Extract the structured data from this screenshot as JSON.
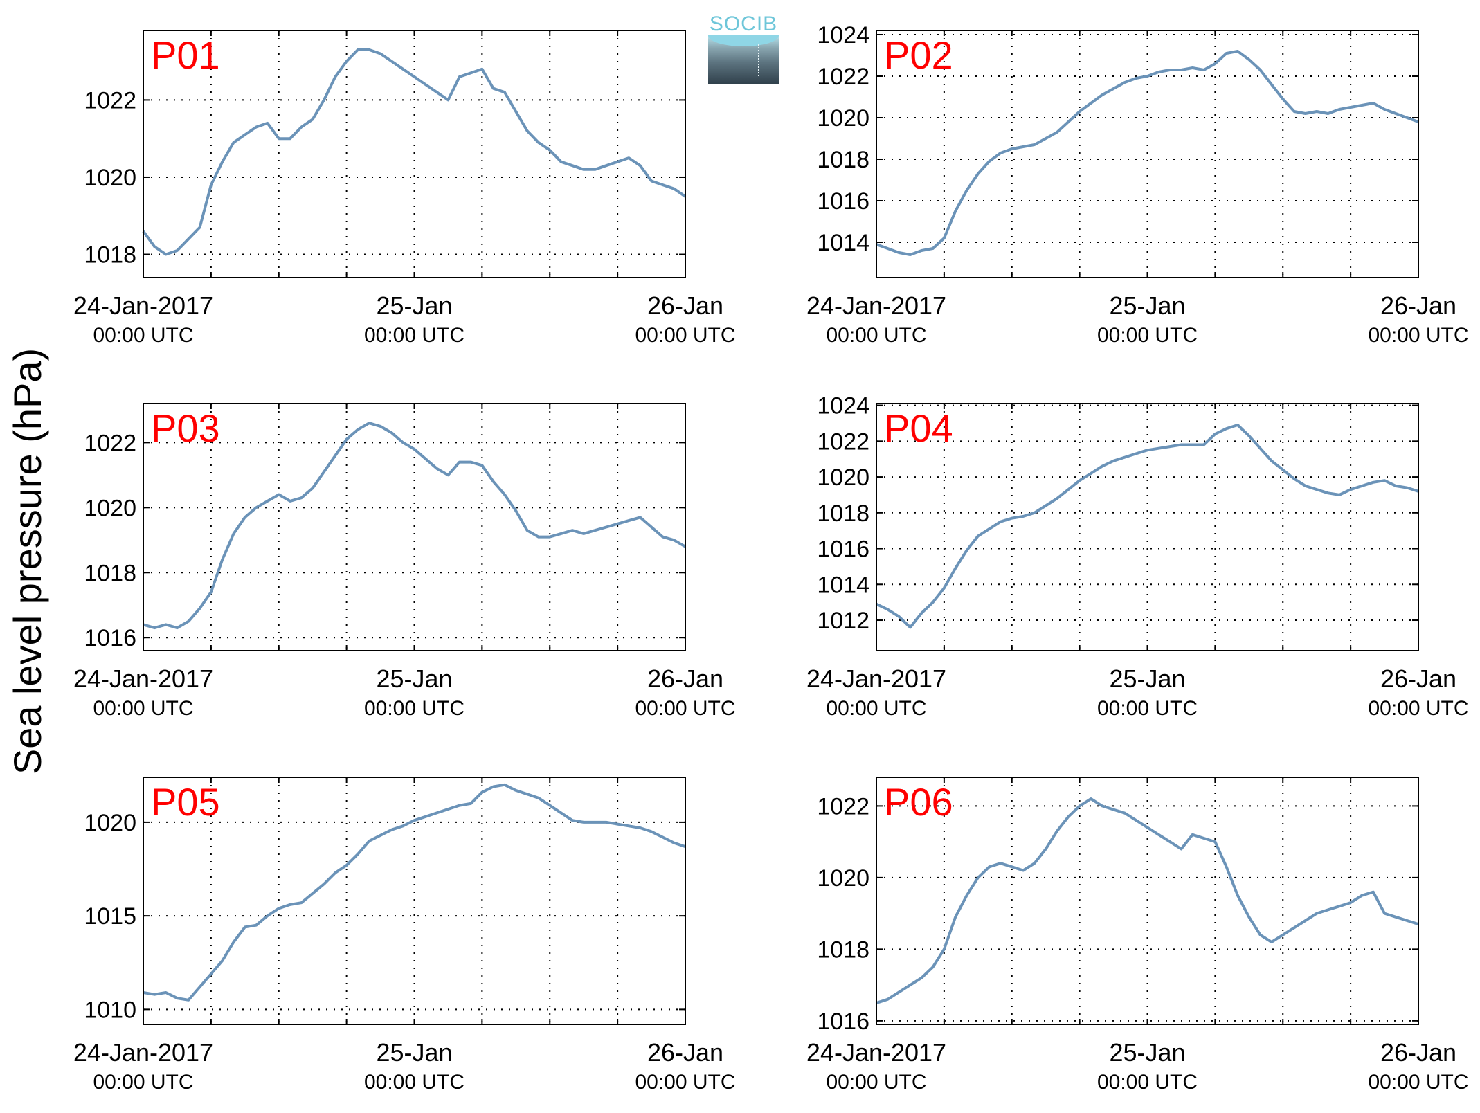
{
  "figure": {
    "ylabel": "Sea level pressure (hPa)",
    "logo_text": "SOCIB"
  },
  "chart_data": [
    {
      "type": "line",
      "title": "P01",
      "xlim": [
        "24-Jan-2017 00:00",
        "26-Jan-2017 00:00"
      ],
      "ylim": [
        1017.4,
        1023.8
      ],
      "yticks": [
        1018,
        1020,
        1022
      ],
      "xtick_labels": [
        [
          "24-Jan-2017",
          "00:00 UTC"
        ],
        [
          "25-Jan",
          "00:00 UTC"
        ],
        [
          "26-Jan",
          "00:00 UTC"
        ]
      ],
      "grid": true,
      "line_color": "#6b93b8",
      "series": [
        {
          "x": [
            0,
            1,
            2,
            3,
            4,
            5,
            6,
            7,
            8,
            9,
            10,
            11,
            12,
            13,
            14,
            15,
            16,
            17,
            18,
            19,
            20,
            21,
            22,
            23,
            24,
            25,
            26,
            27,
            28,
            29,
            30,
            31,
            32,
            33,
            34,
            35,
            36,
            37,
            38,
            39,
            40,
            41,
            42,
            43,
            44,
            45,
            46,
            47,
            48
          ],
          "y": [
            1018.6,
            1018.2,
            1018.0,
            1018.1,
            1018.4,
            1018.7,
            1019.8,
            1020.4,
            1020.9,
            1021.1,
            1021.3,
            1021.4,
            1021.0,
            1021.0,
            1021.3,
            1021.5,
            1022.0,
            1022.6,
            1023.0,
            1023.3,
            1023.3,
            1023.2,
            1023.0,
            1022.8,
            1022.6,
            1022.4,
            1022.2,
            1022.0,
            1022.6,
            1022.7,
            1022.8,
            1022.3,
            1022.2,
            1021.7,
            1021.2,
            1020.9,
            1020.7,
            1020.4,
            1020.3,
            1020.2,
            1020.2,
            1020.3,
            1020.4,
            1020.5,
            1020.3,
            1019.9,
            1019.8,
            1019.7,
            1019.5
          ]
        }
      ]
    },
    {
      "type": "line",
      "title": "P02",
      "xlim": [
        "24-Jan-2017 00:00",
        "26-Jan-2017 00:00"
      ],
      "ylim": [
        1012.3,
        1024.2
      ],
      "yticks": [
        1014,
        1016,
        1018,
        1020,
        1022,
        1024
      ],
      "xtick_labels": [
        [
          "24-Jan-2017",
          "00:00 UTC"
        ],
        [
          "25-Jan",
          "00:00 UTC"
        ],
        [
          "26-Jan",
          "00:00 UTC"
        ]
      ],
      "grid": true,
      "line_color": "#6b93b8",
      "series": [
        {
          "x": [
            0,
            1,
            2,
            3,
            4,
            5,
            6,
            7,
            8,
            9,
            10,
            11,
            12,
            13,
            14,
            15,
            16,
            17,
            18,
            19,
            20,
            21,
            22,
            23,
            24,
            25,
            26,
            27,
            28,
            29,
            30,
            31,
            32,
            33,
            34,
            35,
            36,
            37,
            38,
            39,
            40,
            41,
            42,
            43,
            44,
            45,
            46,
            47,
            48
          ],
          "y": [
            1013.9,
            1013.7,
            1013.5,
            1013.4,
            1013.6,
            1013.7,
            1014.2,
            1015.5,
            1016.5,
            1017.3,
            1017.9,
            1018.3,
            1018.5,
            1018.6,
            1018.7,
            1019.0,
            1019.3,
            1019.8,
            1020.3,
            1020.7,
            1021.1,
            1021.4,
            1021.7,
            1021.9,
            1022.0,
            1022.2,
            1022.3,
            1022.3,
            1022.4,
            1022.3,
            1022.6,
            1023.1,
            1023.2,
            1022.8,
            1022.3,
            1021.6,
            1020.9,
            1020.3,
            1020.2,
            1020.3,
            1020.2,
            1020.4,
            1020.5,
            1020.6,
            1020.7,
            1020.4,
            1020.2,
            1020.0,
            1019.8
          ]
        }
      ]
    },
    {
      "type": "line",
      "title": "P03",
      "xlim": [
        "24-Jan-2017 00:00",
        "26-Jan-2017 00:00"
      ],
      "ylim": [
        1015.6,
        1023.2
      ],
      "yticks": [
        1016,
        1018,
        1020,
        1022
      ],
      "xtick_labels": [
        [
          "24-Jan-2017",
          "00:00 UTC"
        ],
        [
          "25-Jan",
          "00:00 UTC"
        ],
        [
          "26-Jan",
          "00:00 UTC"
        ]
      ],
      "grid": true,
      "line_color": "#6b93b8",
      "series": [
        {
          "x": [
            0,
            1,
            2,
            3,
            4,
            5,
            6,
            7,
            8,
            9,
            10,
            11,
            12,
            13,
            14,
            15,
            16,
            17,
            18,
            19,
            20,
            21,
            22,
            23,
            24,
            25,
            26,
            27,
            28,
            29,
            30,
            31,
            32,
            33,
            34,
            35,
            36,
            37,
            38,
            39,
            40,
            41,
            42,
            43,
            44,
            45,
            46,
            47,
            48
          ],
          "y": [
            1016.4,
            1016.3,
            1016.4,
            1016.3,
            1016.5,
            1016.9,
            1017.4,
            1018.4,
            1019.2,
            1019.7,
            1020.0,
            1020.2,
            1020.4,
            1020.2,
            1020.3,
            1020.6,
            1021.1,
            1021.6,
            1022.1,
            1022.4,
            1022.6,
            1022.5,
            1022.3,
            1022.0,
            1021.8,
            1021.5,
            1021.2,
            1021.0,
            1021.4,
            1021.4,
            1021.3,
            1020.8,
            1020.4,
            1019.9,
            1019.3,
            1019.1,
            1019.1,
            1019.2,
            1019.3,
            1019.2,
            1019.3,
            1019.4,
            1019.5,
            1019.6,
            1019.7,
            1019.4,
            1019.1,
            1019.0,
            1018.8
          ]
        }
      ]
    },
    {
      "type": "line",
      "title": "P04",
      "xlim": [
        "24-Jan-2017 00:00",
        "26-Jan-2017 00:00"
      ],
      "ylim": [
        1010.3,
        1024.1
      ],
      "yticks": [
        1012,
        1014,
        1016,
        1018,
        1020,
        1022,
        1024
      ],
      "xtick_labels": [
        [
          "24-Jan-2017",
          "00:00 UTC"
        ],
        [
          "25-Jan",
          "00:00 UTC"
        ],
        [
          "26-Jan",
          "00:00 UTC"
        ]
      ],
      "grid": true,
      "line_color": "#6b93b8",
      "series": [
        {
          "x": [
            0,
            1,
            2,
            3,
            4,
            5,
            6,
            7,
            8,
            9,
            10,
            11,
            12,
            13,
            14,
            15,
            16,
            17,
            18,
            19,
            20,
            21,
            22,
            23,
            24,
            25,
            26,
            27,
            28,
            29,
            30,
            31,
            32,
            33,
            34,
            35,
            36,
            37,
            38,
            39,
            40,
            41,
            42,
            43,
            44,
            45,
            46,
            47,
            48
          ],
          "y": [
            1012.9,
            1012.6,
            1012.2,
            1011.6,
            1012.4,
            1013.0,
            1013.8,
            1014.9,
            1015.9,
            1016.7,
            1017.1,
            1017.5,
            1017.7,
            1017.8,
            1018.0,
            1018.4,
            1018.8,
            1019.3,
            1019.8,
            1020.2,
            1020.6,
            1020.9,
            1021.1,
            1021.3,
            1021.5,
            1021.6,
            1021.7,
            1021.8,
            1021.8,
            1021.8,
            1022.4,
            1022.7,
            1022.9,
            1022.3,
            1021.6,
            1020.9,
            1020.4,
            1019.9,
            1019.5,
            1019.3,
            1019.1,
            1019.0,
            1019.3,
            1019.5,
            1019.7,
            1019.8,
            1019.5,
            1019.4,
            1019.2
          ]
        }
      ]
    },
    {
      "type": "line",
      "title": "P05",
      "xlim": [
        "24-Jan-2017 00:00",
        "26-Jan-2017 00:00"
      ],
      "ylim": [
        1009.2,
        1022.4
      ],
      "yticks": [
        1010,
        1015,
        1020
      ],
      "xtick_labels": [
        [
          "24-Jan-2017",
          "00:00 UTC"
        ],
        [
          "25-Jan",
          "00:00 UTC"
        ],
        [
          "26-Jan",
          "00:00 UTC"
        ]
      ],
      "grid": true,
      "line_color": "#6b93b8",
      "series": [
        {
          "x": [
            0,
            1,
            2,
            3,
            4,
            5,
            6,
            7,
            8,
            9,
            10,
            11,
            12,
            13,
            14,
            15,
            16,
            17,
            18,
            19,
            20,
            21,
            22,
            23,
            24,
            25,
            26,
            27,
            28,
            29,
            30,
            31,
            32,
            33,
            34,
            35,
            36,
            37,
            38,
            39,
            40,
            41,
            42,
            43,
            44,
            45,
            46,
            47,
            48
          ],
          "y": [
            1010.9,
            1010.8,
            1010.9,
            1010.6,
            1010.5,
            1011.2,
            1011.9,
            1012.6,
            1013.6,
            1014.4,
            1014.5,
            1015.0,
            1015.4,
            1015.6,
            1015.7,
            1016.2,
            1016.7,
            1017.3,
            1017.7,
            1018.3,
            1019.0,
            1019.3,
            1019.6,
            1019.8,
            1020.1,
            1020.3,
            1020.5,
            1020.7,
            1020.9,
            1021.0,
            1021.6,
            1021.9,
            1022.0,
            1021.7,
            1021.5,
            1021.3,
            1020.9,
            1020.5,
            1020.1,
            1020.0,
            1020.0,
            1020.0,
            1019.9,
            1019.8,
            1019.7,
            1019.5,
            1019.2,
            1018.9,
            1018.7
          ]
        }
      ]
    },
    {
      "type": "line",
      "title": "P06",
      "xlim": [
        "24-Jan-2017 00:00",
        "26-Jan-2017 00:00"
      ],
      "ylim": [
        1015.9,
        1022.8
      ],
      "yticks": [
        1016,
        1018,
        1020,
        1022
      ],
      "xtick_labels": [
        [
          "24-Jan-2017",
          "00:00 UTC"
        ],
        [
          "25-Jan",
          "00:00 UTC"
        ],
        [
          "26-Jan",
          "00:00 UTC"
        ]
      ],
      "grid": true,
      "line_color": "#6b93b8",
      "series": [
        {
          "x": [
            0,
            1,
            2,
            3,
            4,
            5,
            6,
            7,
            8,
            9,
            10,
            11,
            12,
            13,
            14,
            15,
            16,
            17,
            18,
            19,
            20,
            21,
            22,
            23,
            24,
            25,
            26,
            27,
            28,
            29,
            30,
            31,
            32,
            33,
            34,
            35,
            36,
            37,
            38,
            39,
            40,
            41,
            42,
            43,
            44,
            45,
            46,
            47,
            48
          ],
          "y": [
            1016.5,
            1016.6,
            1016.8,
            1017.0,
            1017.2,
            1017.5,
            1018.0,
            1018.9,
            1019.5,
            1020.0,
            1020.3,
            1020.4,
            1020.3,
            1020.2,
            1020.4,
            1020.8,
            1021.3,
            1021.7,
            1022.0,
            1022.2,
            1022.0,
            1021.9,
            1021.8,
            1021.6,
            1021.4,
            1021.2,
            1021.0,
            1020.8,
            1021.2,
            1021.1,
            1021.0,
            1020.3,
            1019.5,
            1018.9,
            1018.4,
            1018.2,
            1018.4,
            1018.6,
            1018.8,
            1019.0,
            1019.1,
            1019.2,
            1019.3,
            1019.5,
            1019.6,
            1019.0,
            1018.9,
            1018.8,
            1018.7
          ]
        }
      ]
    }
  ]
}
